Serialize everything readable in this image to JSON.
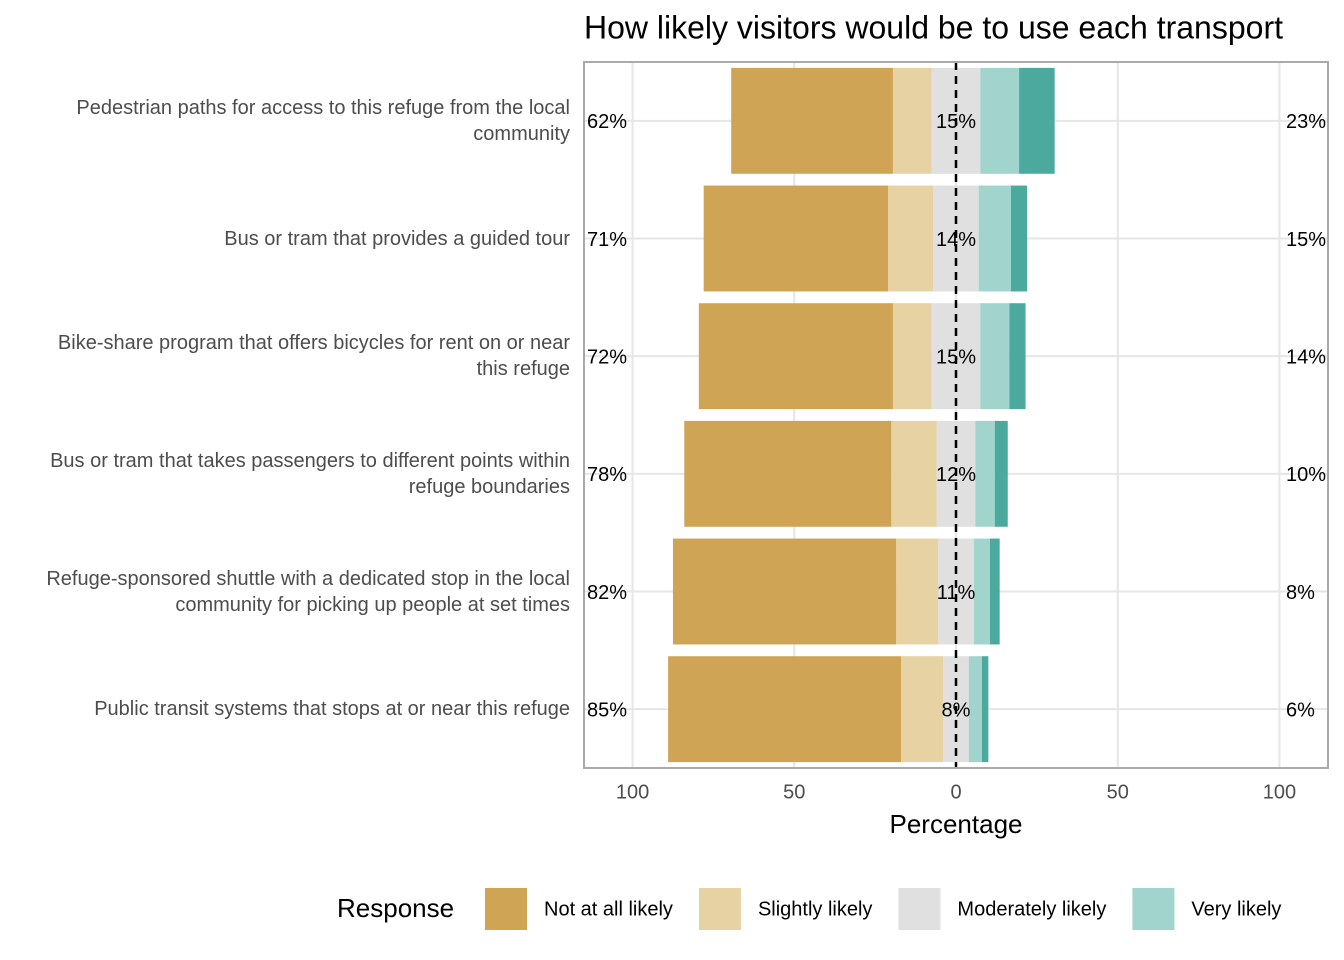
{
  "chart_data": {
    "type": "diverging_bar",
    "title": "How likely visitors would be to use each transport",
    "x_label": "Percentage",
    "legend_title": "Response",
    "categories": [
      "Pedestrian paths for access to this refuge from the local community",
      "Bus or tram that provides a guided tour",
      "Bike-share program that offers bicycles for rent on or near this refuge",
      "Bus or tram that takes passengers to different points within refuge boundaries",
      "Refuge-sponsored shuttle with a dedicated stop in the local community for picking up people at set times",
      "Public transit systems that stops at or near this refuge"
    ],
    "series": [
      {
        "name": "Not at all likely",
        "color": "#cfa555",
        "side": "low",
        "values": [
          50,
          57,
          60,
          64,
          69,
          72
        ]
      },
      {
        "name": "Slightly likely",
        "color": "#e6d2a3",
        "side": "low",
        "values": [
          12,
          14,
          12,
          14,
          13,
          13
        ]
      },
      {
        "name": "Moderately likely",
        "color": "#e0e0e0",
        "side": "neutral",
        "values": [
          15,
          14,
          15,
          12,
          11,
          8
        ]
      },
      {
        "name": "Very likely",
        "color": "#a1d4cc",
        "side": "high",
        "values": [
          12,
          10,
          9,
          6,
          5,
          4
        ]
      },
      {
        "color": "#4ca99d",
        "side": "high",
        "values": [
          11,
          5,
          5,
          4,
          3,
          2
        ]
      }
    ],
    "low_labels": [
      "62%",
      "71%",
      "72%",
      "78%",
      "82%",
      "85%"
    ],
    "neutral_labels": [
      "15%",
      "14%",
      "15%",
      "12%",
      "11%",
      "8%"
    ],
    "high_labels": [
      "23%",
      "15%",
      "14%",
      "10%",
      "8%",
      "6%"
    ],
    "xlim": [
      -115,
      115
    ],
    "xticks": [
      {
        "value": -100,
        "label": "100"
      },
      {
        "value": -50,
        "label": "50"
      },
      0,
      50,
      {
        "value": 100,
        "label": "100"
      }
    ],
    "grid": true
  }
}
